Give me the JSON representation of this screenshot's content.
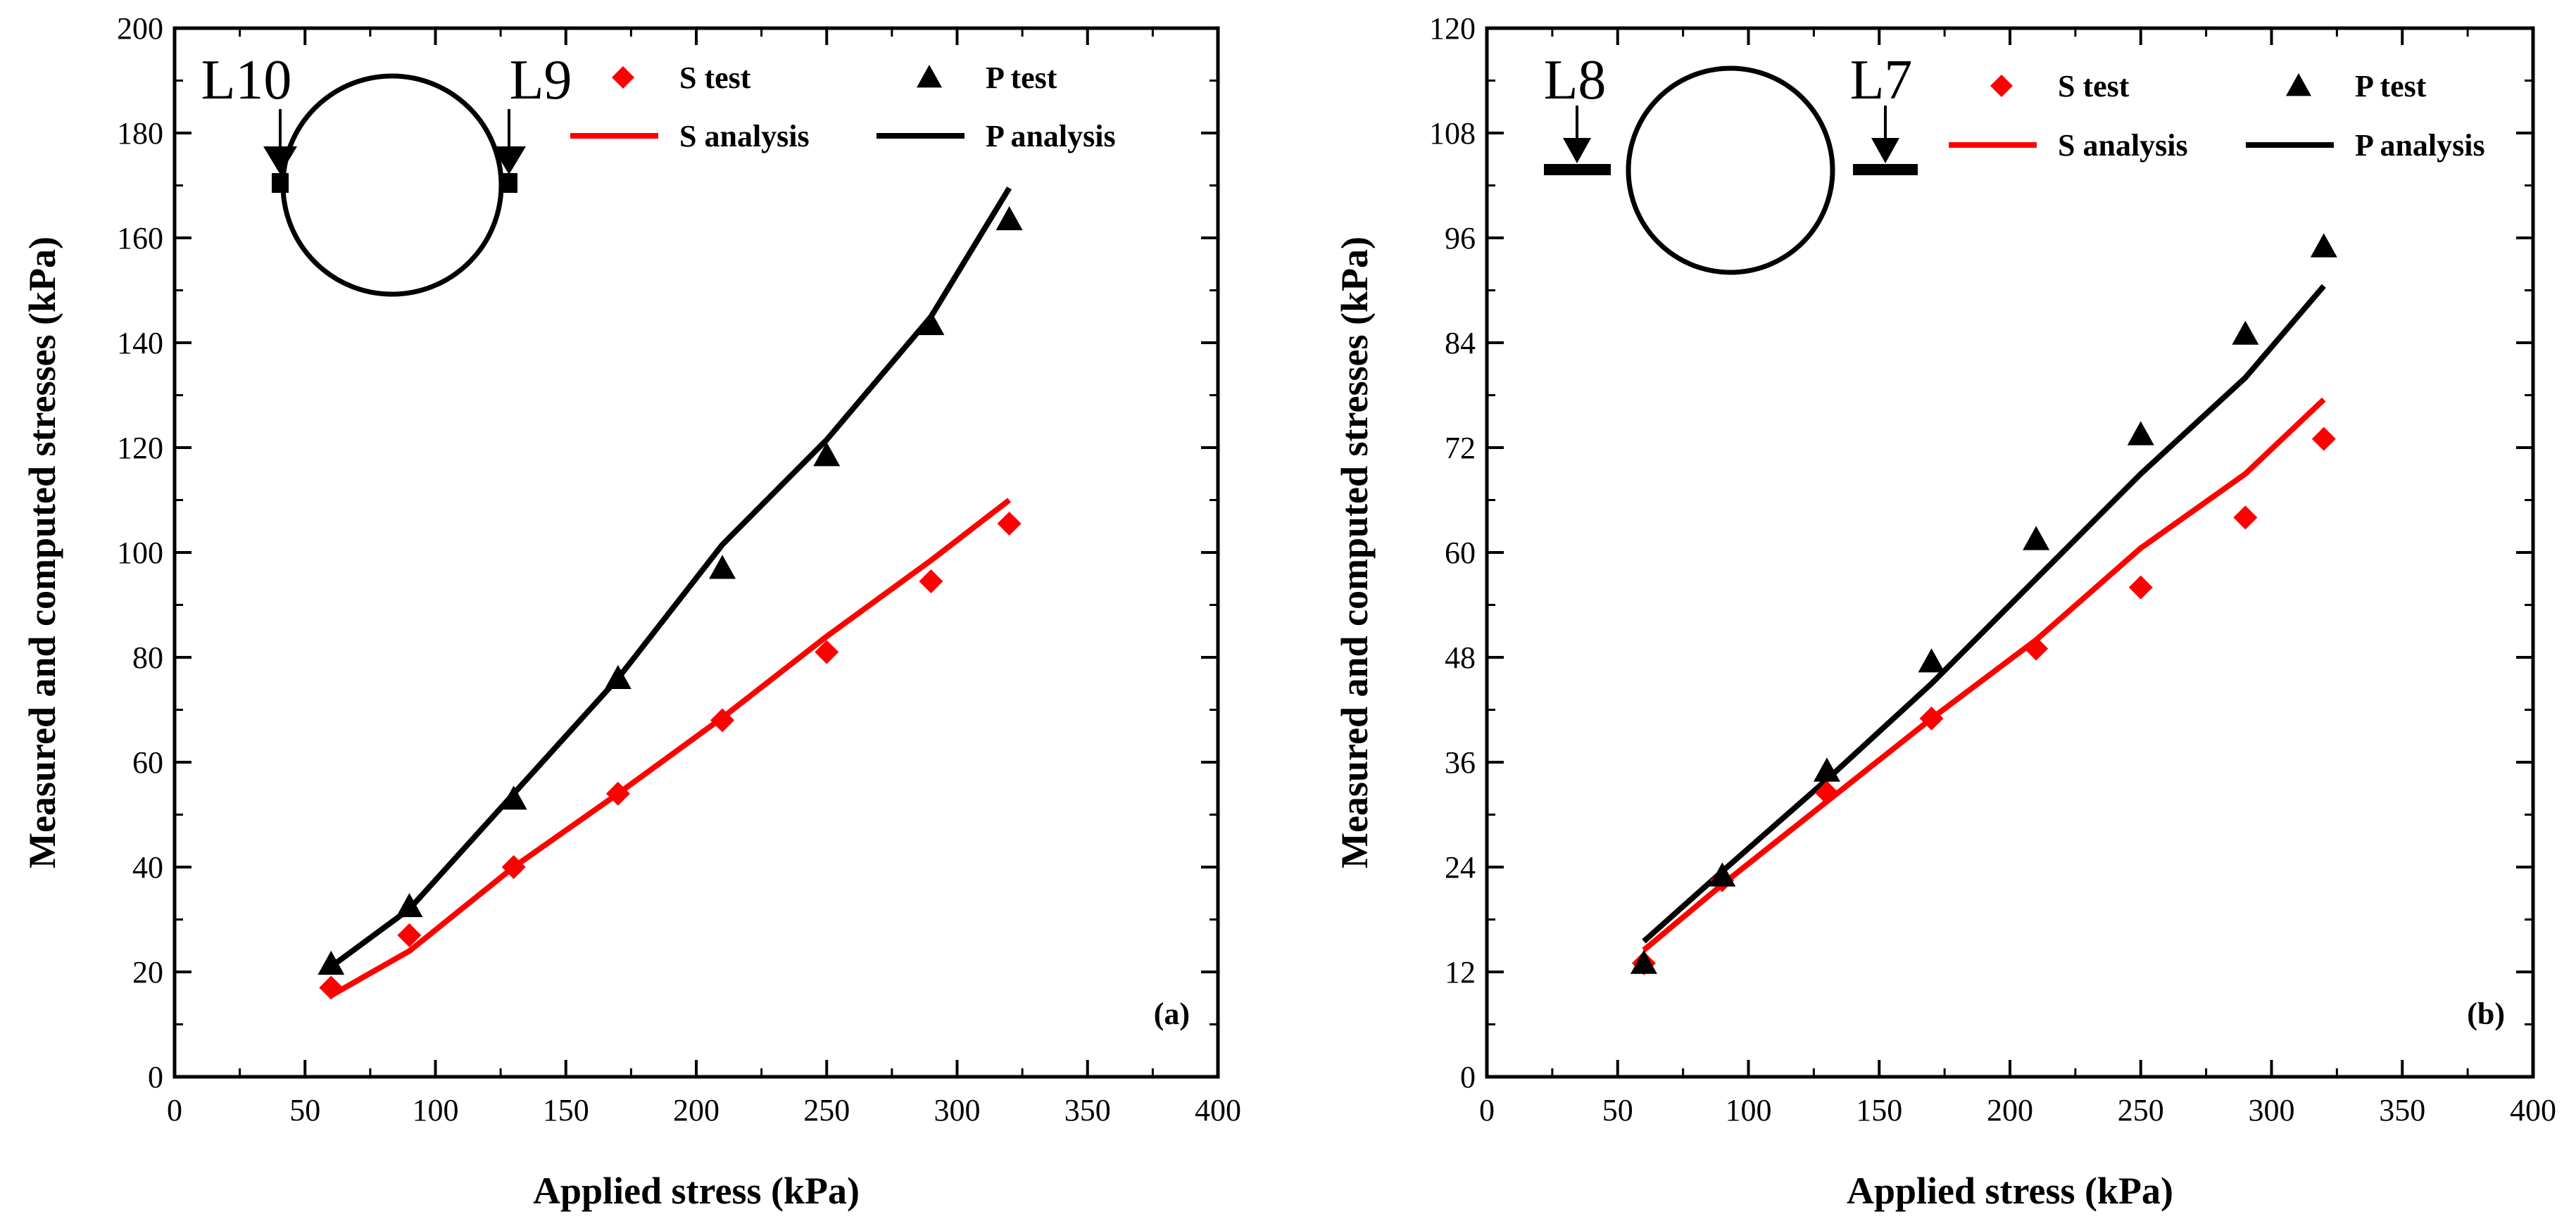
{
  "chart_data": [
    {
      "type": "line",
      "panel": "(a)",
      "xlabel": "Applied stress (kPa)",
      "ylabel": "Measured and computed stresses (kPa)",
      "xlim": [
        0,
        400
      ],
      "ylim": [
        0,
        200
      ],
      "xticks": [
        0,
        50,
        100,
        150,
        200,
        250,
        300,
        350,
        400
      ],
      "yticks": [
        0,
        20,
        40,
        60,
        80,
        100,
        120,
        140,
        160,
        180,
        200
      ],
      "grid": false,
      "legend_position": "top-right",
      "inset_labels": {
        "left": "L10",
        "right": "L9",
        "style": "triangles"
      },
      "series": [
        {
          "name": "S test",
          "kind": "scatter",
          "marker": "diamond",
          "color": "#ff0000",
          "x": [
            60,
            90,
            130,
            170,
            210,
            250,
            290,
            320
          ],
          "y": [
            17,
            27,
            40,
            54,
            68,
            81,
            94.5,
            105.5
          ]
        },
        {
          "name": "P test",
          "kind": "scatter",
          "marker": "triangle",
          "color": "#000000",
          "x": [
            60,
            90,
            130,
            170,
            210,
            250,
            290,
            320
          ],
          "y": [
            21.5,
            32.5,
            53,
            76,
            97,
            118.5,
            143.5,
            163.5
          ]
        },
        {
          "name": "S analysis",
          "kind": "line",
          "color": "#ff0000",
          "x": [
            60,
            90,
            130,
            170,
            210,
            250,
            290,
            320
          ],
          "y": [
            15.5,
            24,
            40,
            54,
            68.5,
            84,
            98.5,
            110
          ]
        },
        {
          "name": "P analysis",
          "kind": "line",
          "color": "#000000",
          "x": [
            60,
            90,
            130,
            170,
            210,
            250,
            290,
            320
          ],
          "y": [
            21,
            32,
            54,
            76,
            101.5,
            121.5,
            145,
            169.5
          ]
        }
      ]
    },
    {
      "type": "line",
      "panel": "(b)",
      "xlabel": "Applied stress (kPa)",
      "ylabel": "Measured and computed stresses (kPa)",
      "xlim": [
        0,
        400
      ],
      "ylim": [
        0,
        120
      ],
      "xticks": [
        0,
        50,
        100,
        150,
        200,
        250,
        300,
        350,
        400
      ],
      "yticks": [
        0,
        12,
        24,
        36,
        48,
        60,
        72,
        84,
        96,
        108,
        120
      ],
      "grid": false,
      "legend_position": "top-right",
      "inset_labels": {
        "left": "L8",
        "right": "L7",
        "style": "bars"
      },
      "series": [
        {
          "name": "S test",
          "kind": "scatter",
          "marker": "diamond",
          "color": "#ff0000",
          "x": [
            60,
            90,
            130,
            170,
            210,
            250,
            290,
            320
          ],
          "y": [
            13,
            22.5,
            32.5,
            41,
            49,
            56,
            64,
            73
          ]
        },
        {
          "name": "P test",
          "kind": "scatter",
          "marker": "triangle",
          "color": "#000000",
          "x": [
            60,
            90,
            130,
            170,
            210,
            250,
            290,
            320
          ],
          "y": [
            13,
            23,
            35,
            47.5,
            61.5,
            73.5,
            85,
            95
          ]
        },
        {
          "name": "S analysis",
          "kind": "line",
          "color": "#ff0000",
          "x": [
            60,
            90,
            130,
            170,
            210,
            250,
            290,
            320
          ],
          "y": [
            14.5,
            22,
            31.5,
            41,
            50,
            60.5,
            69,
            77.5
          ]
        },
        {
          "name": "P analysis",
          "kind": "line",
          "color": "#000000",
          "x": [
            60,
            90,
            130,
            170,
            210,
            250,
            290,
            320
          ],
          "y": [
            15.5,
            23.5,
            34,
            45,
            57,
            69,
            80,
            90.5
          ]
        }
      ]
    }
  ]
}
